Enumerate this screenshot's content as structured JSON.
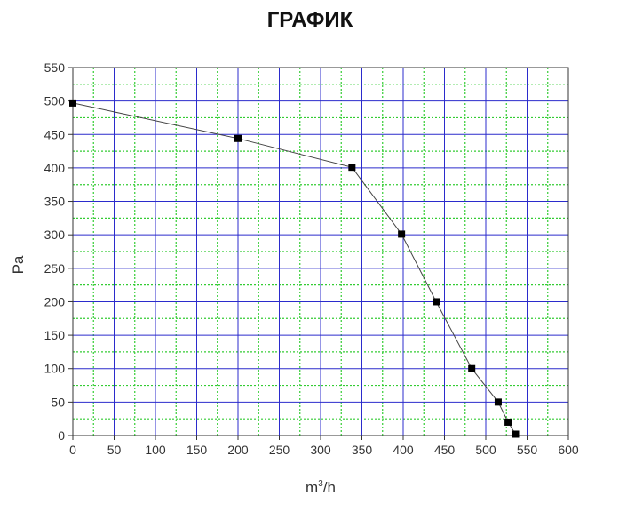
{
  "chart_data": {
    "type": "line",
    "title": "ГРАФИК",
    "xlabel_base": "m",
    "xlabel_sup": "3",
    "xlabel_rest": "/h",
    "ylabel": "Pa",
    "xlim": [
      0,
      600
    ],
    "ylim": [
      0,
      550
    ],
    "x_ticks": [
      0,
      50,
      100,
      150,
      200,
      250,
      300,
      350,
      400,
      450,
      500,
      550,
      600
    ],
    "y_ticks": [
      0,
      50,
      100,
      150,
      200,
      250,
      300,
      350,
      400,
      450,
      500,
      550
    ],
    "grid": true,
    "major_grid_color": "#2b2bcc",
    "minor_grid_color": "#33cc33",
    "line_color": "#444444",
    "marker_color": "#000000",
    "series": [
      {
        "x": [
          0,
          200,
          338,
          398,
          440,
          483,
          515,
          527,
          536
        ],
        "y": [
          497,
          444,
          401,
          301,
          200,
          100,
          50,
          20,
          2
        ]
      }
    ]
  }
}
